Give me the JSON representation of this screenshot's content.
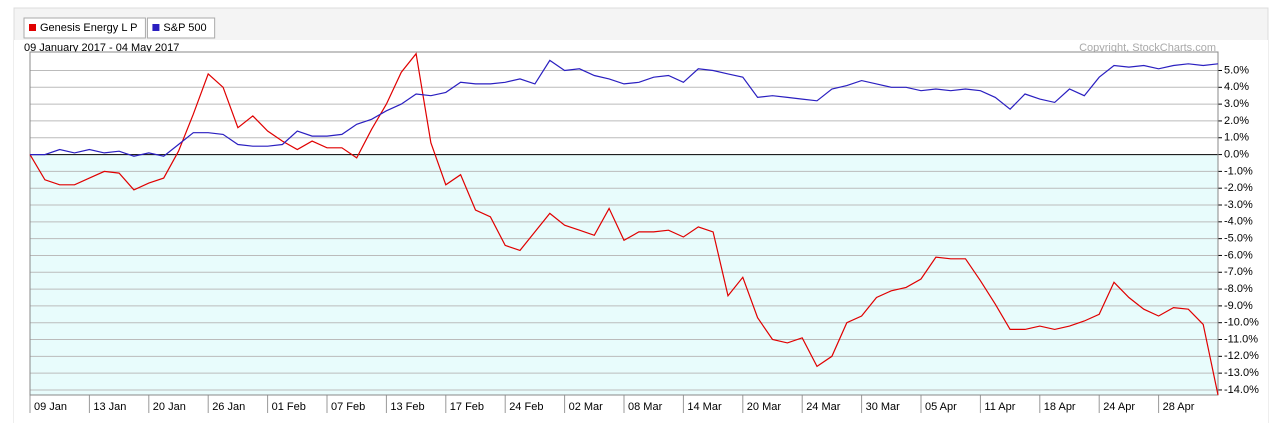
{
  "chart_data": {
    "type": "line",
    "subtitle": "09 January 2017 - 04 May 2017",
    "annotation": "Copyright, StockCharts.com",
    "categories": [
      "09 Jan",
      null,
      null,
      null,
      "13 Jan",
      null,
      null,
      null,
      "20 Jan",
      null,
      null,
      null,
      "26 Jan",
      null,
      null,
      null,
      "01 Feb",
      null,
      null,
      null,
      "07 Feb",
      null,
      null,
      null,
      "13 Feb",
      null,
      null,
      null,
      "17 Feb",
      null,
      null,
      null,
      "24 Feb",
      null,
      null,
      null,
      "02 Mar",
      null,
      null,
      null,
      "08 Mar",
      null,
      null,
      null,
      "14 Mar",
      null,
      null,
      null,
      "20 Mar",
      null,
      null,
      null,
      "24 Mar",
      null,
      null,
      null,
      "30 Mar",
      null,
      null,
      null,
      "05 Apr",
      null,
      null,
      null,
      "11 Apr",
      null,
      null,
      null,
      "18 Apr",
      null,
      null,
      null,
      "24 Apr",
      null,
      null,
      null,
      "28 Apr",
      null,
      null,
      null,
      null
    ],
    "series": [
      {
        "name": "Genesis Energy L P",
        "color": "#e00000",
        "values": [
          0,
          -1.5,
          -1.8,
          -1.8,
          -1.4,
          -1.0,
          -1.1,
          -2.1,
          -1.7,
          -1.4,
          0.2,
          2.4,
          4.8,
          4.0,
          1.6,
          2.3,
          1.4,
          0.8,
          0.3,
          0.8,
          0.4,
          0.4,
          -0.2,
          1.5,
          3.0,
          4.9,
          6.0,
          0.7,
          -1.8,
          -1.2,
          -3.3,
          -3.7,
          -5.4,
          -5.7,
          -4.6,
          -3.5,
          -4.2,
          -4.5,
          -4.8,
          -3.2,
          -5.1,
          -4.6,
          -4.6,
          -4.5,
          -4.9,
          -4.3,
          -4.6,
          -8.4,
          -7.3,
          -9.7,
          -11.0,
          -11.2,
          -10.9,
          -12.6,
          -12.0,
          -10.0,
          -9.6,
          -8.5,
          -8.1,
          -7.9,
          -7.4,
          -6.1,
          -6.2,
          -6.2,
          -7.5,
          -8.9,
          -10.4,
          -10.4,
          -10.2,
          -10.4,
          -10.2,
          -9.9,
          -9.5,
          -7.6,
          -8.5,
          -9.2,
          -9.6,
          -9.1,
          -9.2,
          -10.1,
          -14.3
        ]
      },
      {
        "name": "S&P 500",
        "color": "#2a1fc0",
        "values": [
          0,
          0,
          0.3,
          0.1,
          0.3,
          0.1,
          0.2,
          -0.1,
          0.1,
          -0.1,
          0.6,
          1.3,
          1.3,
          1.2,
          0.6,
          0.5,
          0.5,
          0.6,
          1.4,
          1.1,
          1.1,
          1.2,
          1.8,
          2.1,
          2.6,
          3.0,
          3.6,
          3.5,
          3.7,
          4.3,
          4.2,
          4.2,
          4.3,
          4.5,
          4.2,
          5.6,
          5.0,
          5.1,
          4.7,
          4.5,
          4.2,
          4.3,
          4.6,
          4.7,
          4.3,
          5.1,
          5.0,
          4.8,
          4.6,
          3.4,
          3.5,
          3.4,
          3.3,
          3.2,
          3.9,
          4.1,
          4.4,
          4.2,
          4.0,
          4.0,
          3.8,
          3.9,
          3.8,
          3.9,
          3.8,
          3.4,
          2.7,
          3.6,
          3.3,
          3.1,
          3.9,
          3.5,
          4.6,
          5.3,
          5.2,
          5.3,
          5.1,
          5.3,
          5.4,
          5.3,
          5.4
        ]
      }
    ],
    "ylim": [
      -14.3,
      6.1
    ],
    "yticks": [
      {
        "value": 5,
        "label": "5.0%"
      },
      {
        "value": 4,
        "label": "4.0%"
      },
      {
        "value": 3,
        "label": "3.0%"
      },
      {
        "value": 2,
        "label": "2.0%"
      },
      {
        "value": 1,
        "label": "1.0%"
      },
      {
        "value": 0,
        "label": "0.0%"
      },
      {
        "value": -1,
        "label": "-1.0%"
      },
      {
        "value": -2,
        "label": "-2.0%"
      },
      {
        "value": -3,
        "label": "-3.0%"
      },
      {
        "value": -4,
        "label": "-4.0%"
      },
      {
        "value": -5,
        "label": "-5.0%"
      },
      {
        "value": -6,
        "label": "-6.0%"
      },
      {
        "value": -7,
        "label": "-7.0%"
      },
      {
        "value": -8,
        "label": "-8.0%"
      },
      {
        "value": -9,
        "label": "-9.0%"
      },
      {
        "value": -10,
        "label": "-10.0%"
      },
      {
        "value": -11,
        "label": "-11.0%"
      },
      {
        "value": -12,
        "label": "-12.0%"
      },
      {
        "value": -13,
        "label": "-13.0%"
      },
      {
        "value": -14,
        "label": "-14.0%"
      }
    ],
    "grid": true
  }
}
